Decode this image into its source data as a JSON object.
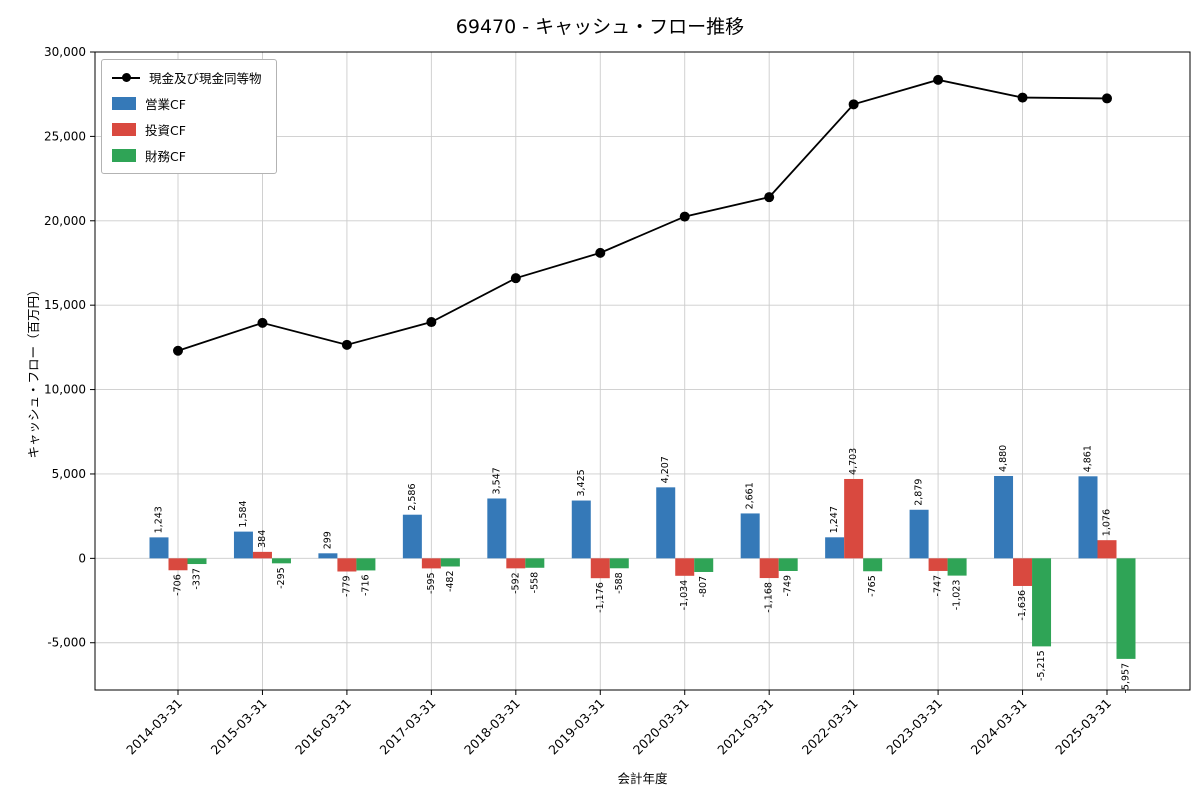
{
  "chart_data": {
    "type": "combo-bar-line",
    "title": "69470 - キャッシュ・フロー推移",
    "xlabel": "会計年度",
    "ylabel": "キャッシュ・フロー（百万円）",
    "categories": [
      "2014-03-31",
      "2015-03-31",
      "2016-03-31",
      "2017-03-31",
      "2018-03-31",
      "2019-03-31",
      "2020-03-31",
      "2021-03-31",
      "2022-03-31",
      "2023-03-31",
      "2024-03-31",
      "2025-03-31"
    ],
    "bar_series": [
      {
        "name": "営業CF",
        "color": "#3579b8",
        "values": [
          1243,
          1584,
          299,
          2586,
          3547,
          3425,
          4207,
          2661,
          1247,
          2879,
          4880,
          4861
        ]
      },
      {
        "name": "投資CF",
        "color": "#d9493f",
        "values": [
          -706,
          384,
          -779,
          -595,
          -592,
          -1176,
          -1034,
          -1168,
          4703,
          -747,
          -1636,
          1076
        ]
      },
      {
        "name": "財務CF",
        "color": "#2fa456",
        "values": [
          -337,
          -295,
          -716,
          -482,
          -558,
          -588,
          -807,
          -749,
          -765,
          -1023,
          -5215,
          -5957
        ]
      }
    ],
    "line_series": {
      "name": "現金及び現金同等物",
      "color": "#000000",
      "values": [
        12300,
        13950,
        12650,
        14000,
        16600,
        18100,
        20250,
        21400,
        26900,
        28350,
        27300,
        27250
      ]
    },
    "ylim": [
      -7800,
      30000
    ],
    "yticks": [
      -5000,
      0,
      5000,
      10000,
      15000,
      20000,
      25000,
      30000
    ],
    "grid": true,
    "grid_color": "#cccccc",
    "spine_color": "#000000",
    "background": "#ffffff",
    "legend_position": "upper-left"
  }
}
